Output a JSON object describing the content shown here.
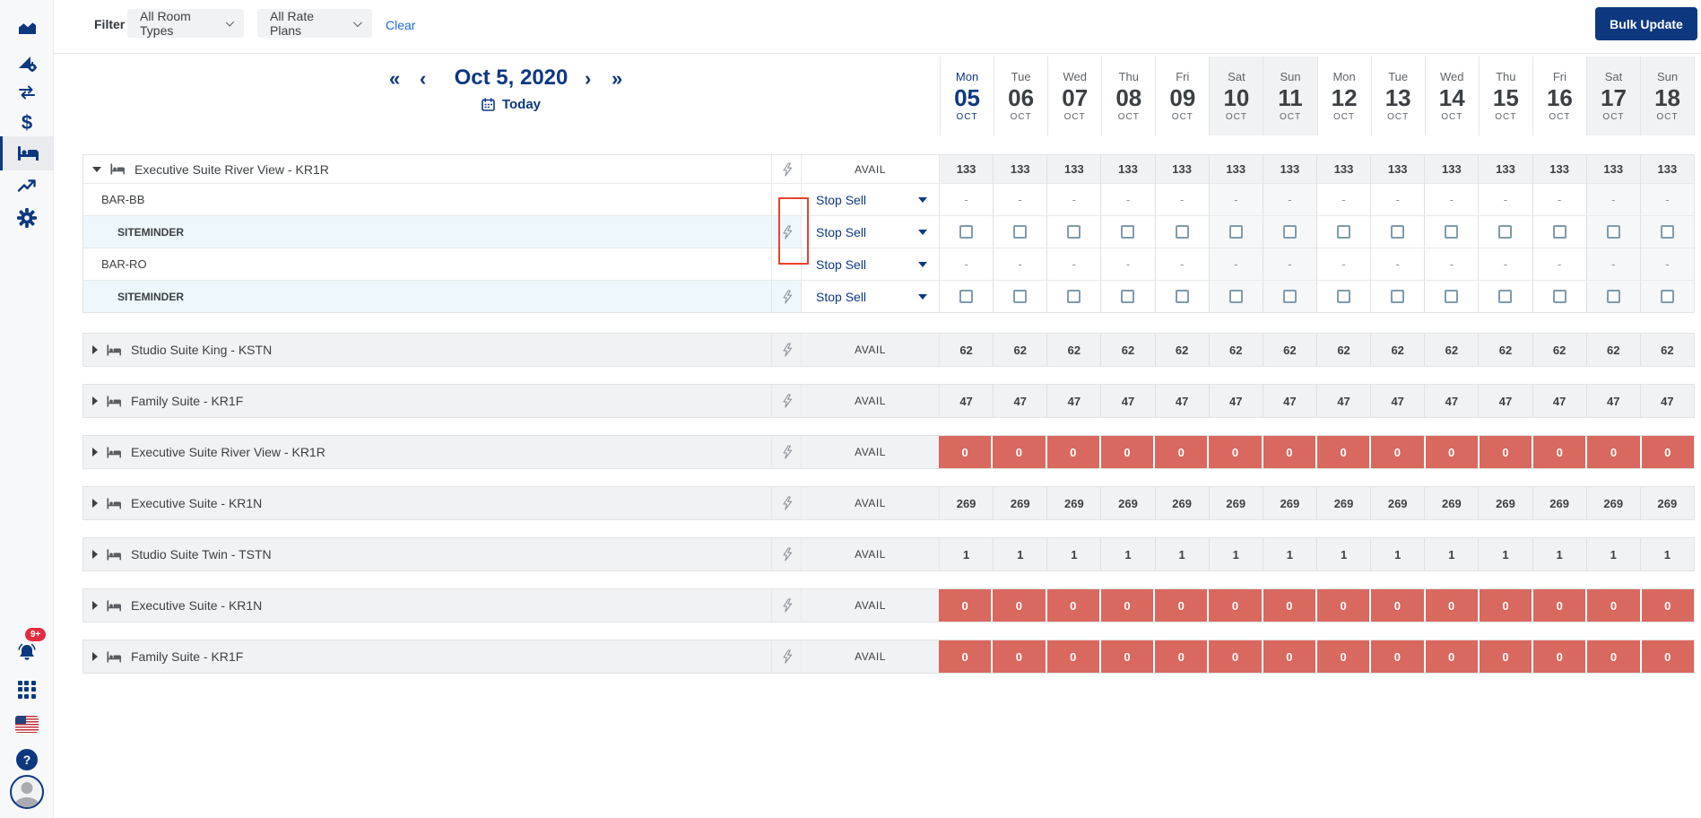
{
  "sidebar": {
    "badge": "9+",
    "items": [
      "performance",
      "setup",
      "distribution",
      "payments",
      "inventory",
      "insights",
      "settings"
    ],
    "active_item": "inventory"
  },
  "icons": {
    "dollar_glyph": "$",
    "help_glyph": "?"
  },
  "filter": {
    "label": "Filter",
    "room_types_value": "All Room Types",
    "rate_plans_value": "All Rate Plans",
    "clear_label": "Clear",
    "bulk_update_label": "Bulk Update"
  },
  "date_nav": {
    "prev_fast": "«",
    "prev": "‹",
    "current_date": "Oct 5, 2020",
    "next": "›",
    "next_fast": "»",
    "today_label": "Today"
  },
  "calendar": {
    "days": [
      {
        "dow": "Mon",
        "day": "05",
        "month": "OCT",
        "today": true,
        "weekend": false
      },
      {
        "dow": "Tue",
        "day": "06",
        "month": "OCT",
        "today": false,
        "weekend": false
      },
      {
        "dow": "Wed",
        "day": "07",
        "month": "OCT",
        "today": false,
        "weekend": false
      },
      {
        "dow": "Thu",
        "day": "08",
        "month": "OCT",
        "today": false,
        "weekend": false
      },
      {
        "dow": "Fri",
        "day": "09",
        "month": "OCT",
        "today": false,
        "weekend": false
      },
      {
        "dow": "Sat",
        "day": "10",
        "month": "OCT",
        "today": false,
        "weekend": true
      },
      {
        "dow": "Sun",
        "day": "11",
        "month": "OCT",
        "today": false,
        "weekend": true
      },
      {
        "dow": "Mon",
        "day": "12",
        "month": "OCT",
        "today": false,
        "weekend": false
      },
      {
        "dow": "Tue",
        "day": "13",
        "month": "OCT",
        "today": false,
        "weekend": false
      },
      {
        "dow": "Wed",
        "day": "14",
        "month": "OCT",
        "today": false,
        "weekend": false
      },
      {
        "dow": "Thu",
        "day": "15",
        "month": "OCT",
        "today": false,
        "weekend": false
      },
      {
        "dow": "Fri",
        "day": "16",
        "month": "OCT",
        "today": false,
        "weekend": false
      },
      {
        "dow": "Sat",
        "day": "17",
        "month": "OCT",
        "today": false,
        "weekend": true
      },
      {
        "dow": "Sun",
        "day": "18",
        "month": "OCT",
        "today": false,
        "weekend": true
      }
    ]
  },
  "table": {
    "avail_label": "AVAIL",
    "stop_sell_label": "Stop Sell",
    "dash": "-",
    "num_day_columns": 14,
    "groups": [
      {
        "name": "Executive Suite River View - KR1R",
        "expanded": true,
        "avail": "133",
        "soldout": false,
        "highlight_rect": true,
        "rows": [
          {
            "label": "BAR-BB",
            "kind": "rate-plan",
            "cells": "dash"
          },
          {
            "label": "SITEMINDER",
            "kind": "channel",
            "cells": "checkbox"
          },
          {
            "label": "BAR-RO",
            "kind": "rate-plan",
            "cells": "dash"
          },
          {
            "label": "SITEMINDER",
            "kind": "channel",
            "cells": "checkbox"
          }
        ]
      },
      {
        "name": "Studio Suite King - KSTN",
        "expanded": false,
        "avail": "62",
        "soldout": false
      },
      {
        "name": "Family Suite - KR1F",
        "expanded": false,
        "avail": "47",
        "soldout": false
      },
      {
        "name": "Executive Suite River View - KR1R",
        "expanded": false,
        "avail": "0",
        "soldout": true
      },
      {
        "name": "Executive Suite - KR1N",
        "expanded": false,
        "avail": "269",
        "soldout": false
      },
      {
        "name": "Studio Suite Twin - TSTN",
        "expanded": false,
        "avail": "1",
        "soldout": false
      },
      {
        "name": "Executive Suite - KR1N",
        "expanded": false,
        "avail": "0",
        "soldout": true
      },
      {
        "name": "Family Suite - KR1F",
        "expanded": false,
        "avail": "0",
        "soldout": true
      }
    ]
  },
  "colors": {
    "navy": "#0d3880",
    "link_blue": "#1a6bdf",
    "soldout_red": "#d9685f",
    "badge_red": "#e22c3e",
    "highlight_red": "#e8432e",
    "row_gray": "#f1f2f3",
    "channel_blue": "#eef8fc"
  }
}
